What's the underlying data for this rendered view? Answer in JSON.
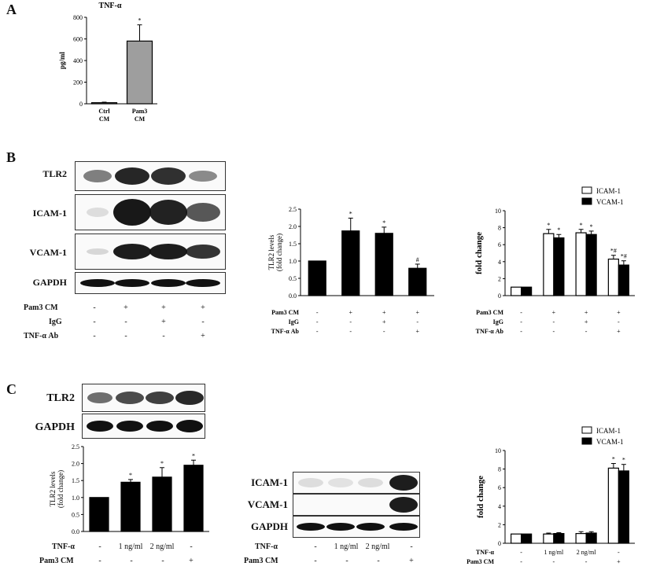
{
  "panels": {
    "A": "A",
    "B": "B",
    "C": "C"
  },
  "panelA": {
    "chart_data": {
      "type": "bar",
      "title": "TNF-α",
      "ylabel": "pg/ml",
      "categories": [
        "Ctrl CM",
        "Pam3 CM"
      ],
      "values": [
        10,
        580
      ],
      "errors": [
        5,
        150
      ],
      "yticks": [
        "0",
        "200",
        "400",
        "600",
        "800"
      ],
      "ylim": [
        0,
        800
      ],
      "significance": [
        "",
        "*"
      ],
      "colors": [
        "#9e9e9e",
        "#9e9e9e"
      ]
    }
  },
  "panelB": {
    "blots": [
      "TLR2",
      "ICAM-1",
      "VCAM-1",
      "GAPDH"
    ],
    "conditions": {
      "labels": [
        "Pam3 CM",
        "IgG",
        "TNF-α Ab"
      ],
      "rows": [
        [
          "-",
          "+",
          "+",
          "+"
        ],
        [
          "-",
          "-",
          "+",
          "-"
        ],
        [
          "-",
          "-",
          "-",
          "+"
        ]
      ]
    },
    "tlr2_chart": {
      "type": "bar",
      "ylabel": "TLR2 levels (fold change)",
      "values": [
        1.0,
        1.87,
        1.8,
        0.79
      ],
      "errors": [
        0,
        0.37,
        0.18,
        0.12
      ],
      "yticks": [
        "0.0",
        "0.5",
        "1.0",
        "1.5",
        "2.0",
        "2.5"
      ],
      "ylim": [
        0,
        2.5
      ],
      "significance": [
        "",
        "*",
        "*",
        "#"
      ]
    },
    "cam_chart": {
      "type": "bar",
      "ylabel": "fold change",
      "legend": [
        "ICAM-1",
        "VCAM-1"
      ],
      "series": [
        {
          "name": "ICAM-1",
          "values": [
            1.0,
            7.3,
            7.4,
            4.3
          ],
          "errors": [
            0,
            0.5,
            0.4,
            0.45
          ],
          "sig": [
            "",
            "*",
            "*",
            "*#"
          ]
        },
        {
          "name": "VCAM-1",
          "values": [
            1.0,
            6.8,
            7.2,
            3.6
          ],
          "errors": [
            0,
            0.4,
            0.4,
            0.5
          ],
          "sig": [
            "",
            "*",
            "*",
            "*#"
          ]
        }
      ],
      "yticks": [
        "0",
        "2",
        "4",
        "6",
        "8",
        "10"
      ],
      "ylim": [
        0,
        10
      ]
    }
  },
  "panelC": {
    "blots_top": [
      "TLR2",
      "GAPDH"
    ],
    "blots_mid": [
      "ICAM-1",
      "VCAM-1",
      "GAPDH"
    ],
    "conditions": {
      "labels": [
        "TNF-α",
        "Pam3 CM"
      ],
      "rows": [
        [
          "-",
          "1 ng/ml",
          "2 ng/ml",
          "-"
        ],
        [
          "-",
          "-",
          "-",
          "+"
        ]
      ]
    },
    "tlr2_chart": {
      "type": "bar",
      "ylabel": "TLR2 levels (fold change)",
      "values": [
        1.0,
        1.45,
        1.6,
        1.95
      ],
      "errors": [
        0,
        0.08,
        0.28,
        0.15
      ],
      "yticks": [
        "0.0",
        "0.5",
        "1.0",
        "1.5",
        "2.0",
        "2.5"
      ],
      "ylim": [
        0,
        2.5
      ],
      "significance": [
        "",
        "*",
        "*",
        "*"
      ]
    },
    "cam_chart": {
      "type": "bar",
      "ylabel": "fold change",
      "legend": [
        "ICAM-1",
        "VCAM-1"
      ],
      "series": [
        {
          "name": "ICAM-1",
          "values": [
            1.0,
            1.0,
            1.05,
            8.1
          ],
          "errors": [
            0,
            0.1,
            0.2,
            0.5
          ],
          "sig": [
            "",
            "",
            "",
            "*"
          ]
        },
        {
          "name": "VCAM-1",
          "values": [
            1.0,
            1.05,
            1.1,
            7.8
          ],
          "errors": [
            0,
            0.1,
            0.15,
            0.7
          ],
          "sig": [
            "",
            "",
            "",
            "*"
          ]
        }
      ],
      "yticks": [
        "0",
        "2",
        "4",
        "6",
        "8",
        "10"
      ],
      "ylim": [
        0,
        10
      ]
    }
  }
}
